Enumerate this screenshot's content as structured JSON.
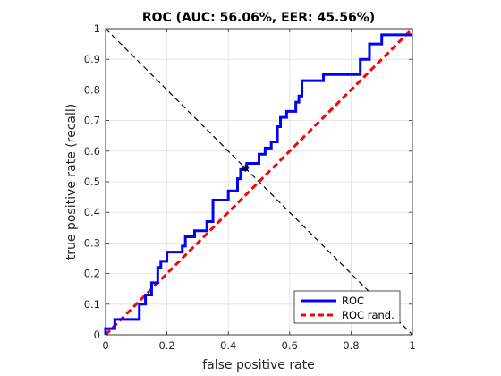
{
  "chart_data": {
    "type": "line",
    "title": "ROC (AUC: 56.06%, EER: 45.56%)",
    "xlabel": "false positive rate",
    "ylabel": "true positive rate (recall)",
    "xlim": [
      0,
      1
    ],
    "ylim": [
      0,
      1
    ],
    "grid": true,
    "legend_position": "bottom-right",
    "x_ticks": [
      "0",
      "0.2",
      "0.4",
      "0.6",
      "0.8",
      "1"
    ],
    "y_ticks": [
      "0",
      "0.1",
      "0.2",
      "0.3",
      "0.4",
      "0.5",
      "0.6",
      "0.7",
      "0.8",
      "0.9",
      "1"
    ],
    "series": [
      {
        "name": "ROC",
        "color": "#0000ff",
        "style": "solid",
        "x": [
          0,
          0,
          0.02,
          0.03,
          0.03,
          0.11,
          0.11,
          0.13,
          0.13,
          0.15,
          0.15,
          0.17,
          0.17,
          0.18,
          0.18,
          0.2,
          0.2,
          0.25,
          0.25,
          0.26,
          0.26,
          0.29,
          0.29,
          0.33,
          0.33,
          0.35,
          0.35,
          0.4,
          0.4,
          0.43,
          0.43,
          0.44,
          0.44,
          0.46,
          0.46,
          0.5,
          0.5,
          0.52,
          0.52,
          0.54,
          0.54,
          0.56,
          0.56,
          0.57,
          0.57,
          0.59,
          0.59,
          0.62,
          0.62,
          0.63,
          0.63,
          0.64,
          0.64,
          0.71,
          0.71,
          0.83,
          0.83,
          0.86,
          0.86,
          0.9,
          0.9,
          1
        ],
        "y": [
          0,
          0.02,
          0.02,
          0.02,
          0.05,
          0.05,
          0.1,
          0.1,
          0.13,
          0.13,
          0.17,
          0.17,
          0.22,
          0.22,
          0.24,
          0.24,
          0.27,
          0.27,
          0.29,
          0.29,
          0.32,
          0.32,
          0.34,
          0.34,
          0.37,
          0.37,
          0.44,
          0.44,
          0.47,
          0.47,
          0.51,
          0.51,
          0.54,
          0.54,
          0.56,
          0.56,
          0.59,
          0.59,
          0.61,
          0.61,
          0.63,
          0.63,
          0.68,
          0.68,
          0.71,
          0.71,
          0.73,
          0.73,
          0.76,
          0.76,
          0.78,
          0.78,
          0.83,
          0.83,
          0.85,
          0.85,
          0.9,
          0.9,
          0.95,
          0.95,
          0.98,
          0.98
        ]
      },
      {
        "name": "ROC rand.",
        "color": "#ff0000",
        "style": "dashed",
        "x": [
          0,
          1
        ],
        "y": [
          0,
          1
        ]
      }
    ],
    "annotations": [
      {
        "type": "line",
        "color": "#000000",
        "style": "dashed",
        "x": [
          0,
          1
        ],
        "y": [
          1,
          0
        ]
      },
      {
        "type": "marker",
        "symbol": "*",
        "color": "#000000",
        "x": 0.4556,
        "y": 0.5444
      }
    ]
  }
}
